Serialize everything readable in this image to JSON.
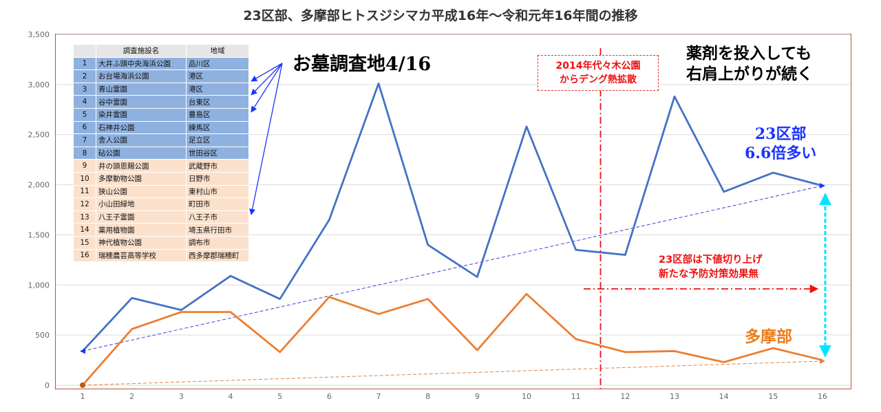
{
  "chart_data": {
    "type": "line",
    "title": "23区部、多摩部ヒトスジシマカ平成16年～令和元年16年間の推移",
    "x": [
      1,
      2,
      3,
      4,
      5,
      6,
      7,
      8,
      9,
      10,
      11,
      12,
      13,
      14,
      15,
      16
    ],
    "ylim": [
      0,
      3500
    ],
    "yticks": [
      0,
      500,
      1000,
      1500,
      2000,
      2500,
      3000,
      3500
    ],
    "ytick_labels": [
      "0",
      "500",
      "1,000",
      "1,500",
      "2,000",
      "2,500",
      "3,000",
      "3,500"
    ],
    "series": [
      {
        "name": "23区部",
        "color": "#4472c4",
        "values": [
          340,
          870,
          750,
          1090,
          860,
          1650,
          3010,
          1400,
          1080,
          2580,
          1350,
          1300,
          2880,
          1930,
          2120,
          1990
        ]
      },
      {
        "name": "多摩部",
        "color": "#ed7d31",
        "values": [
          0,
          560,
          730,
          730,
          330,
          880,
          710,
          860,
          350,
          910,
          460,
          330,
          340,
          230,
          370,
          250
        ]
      }
    ],
    "trendlines": [
      {
        "series": "23区部",
        "color": "#4040e0",
        "start": [
          1,
          340
        ],
        "end": [
          16,
          1990
        ]
      },
      {
        "series": "多摩部",
        "color": "#e08040",
        "start": [
          1,
          0
        ],
        "end": [
          16,
          240
        ]
      }
    ],
    "vertical_marker_x": 11.5,
    "grid": true,
    "legend": "none"
  },
  "annotations": {
    "survey": "お墓調査地4/16",
    "dengue_line1": "2014年代々木公園",
    "dengue_line2": "からデング熱拡散",
    "upward_line1": "薬剤を投入しても",
    "upward_line2": "右肩上がりが続く",
    "ward_line1": "23区部",
    "ward_line2": "6.6倍多い",
    "floor_line1": "23区部は下値切り上げ",
    "floor_line2": "新たな予防対策効果無",
    "tama": "多摩部"
  },
  "colors": {
    "ward_line": "#4472c4",
    "tama_line": "#ed7d31",
    "ward_row": "#8fb1df",
    "tama_row": "#fbe1cc",
    "accent_red": "#ee1111",
    "cyan_arrow": "#00e5ff"
  },
  "site_table": {
    "headers": [
      "",
      "調査施設名",
      "地域"
    ],
    "rows": [
      {
        "no": "1",
        "name": "大井ふ頭中央海浜公園",
        "area": "品川区",
        "group": "ward"
      },
      {
        "no": "2",
        "name": "お台場海浜公園",
        "area": "港区",
        "group": "ward"
      },
      {
        "no": "3",
        "name": "青山霊園",
        "area": "港区",
        "group": "ward"
      },
      {
        "no": "4",
        "name": "谷中霊園",
        "area": "台東区",
        "group": "ward"
      },
      {
        "no": "5",
        "name": "染井霊園",
        "area": "豊島区",
        "group": "ward"
      },
      {
        "no": "6",
        "name": "石神井公園",
        "area": "練馬区",
        "group": "ward"
      },
      {
        "no": "7",
        "name": "舎人公園",
        "area": "足立区",
        "group": "ward"
      },
      {
        "no": "8",
        "name": "砧公園",
        "area": "世田谷区",
        "group": "ward"
      },
      {
        "no": "9",
        "name": "井の頭恩賜公園",
        "area": "武蔵野市",
        "group": "tama"
      },
      {
        "no": "10",
        "name": "多摩動物公園",
        "area": "日野市",
        "group": "tama"
      },
      {
        "no": "11",
        "name": "狭山公園",
        "area": "東村山市",
        "group": "tama"
      },
      {
        "no": "12",
        "name": "小山田緑地",
        "area": "町田市",
        "group": "tama"
      },
      {
        "no": "13",
        "name": "八王子霊園",
        "area": "八王子市",
        "group": "tama"
      },
      {
        "no": "14",
        "name": "薬用植物園",
        "area": "埼玉県行田市",
        "group": "tama"
      },
      {
        "no": "15",
        "name": "神代植物公園",
        "area": "調布市",
        "group": "tama"
      },
      {
        "no": "16",
        "name": "瑞穂農芸高等学校",
        "area": "西多摩郡瑞穂町",
        "group": "tama"
      }
    ]
  }
}
